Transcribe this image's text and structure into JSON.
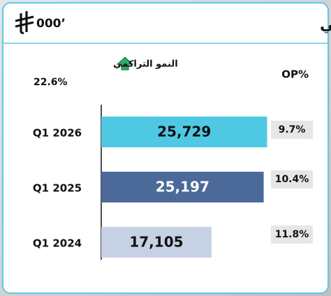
{
  "chart_data": {
    "type": "bar",
    "orientation": "horizontal",
    "title": "الربح التشغيلي",
    "unit": "000’",
    "growth_label": "النمو التراكمي",
    "growth_value": "22.6%",
    "op_header": "OP%",
    "categories": [
      "Q1 2026",
      "Q1 2025",
      "Q1 2024"
    ],
    "values": [
      25729,
      25197,
      17105
    ],
    "value_labels": [
      "25,729",
      "25,197",
      "17,105"
    ],
    "colors": [
      "#4fc8e4",
      "#4b6a99",
      "#c6d1e4"
    ],
    "label_colors": [
      "#111111",
      "#ffffff",
      "#111111"
    ],
    "op_labels": [
      "9.7%",
      "10.4%",
      "11.8%"
    ],
    "xlim": [
      0,
      26000
    ]
  }
}
